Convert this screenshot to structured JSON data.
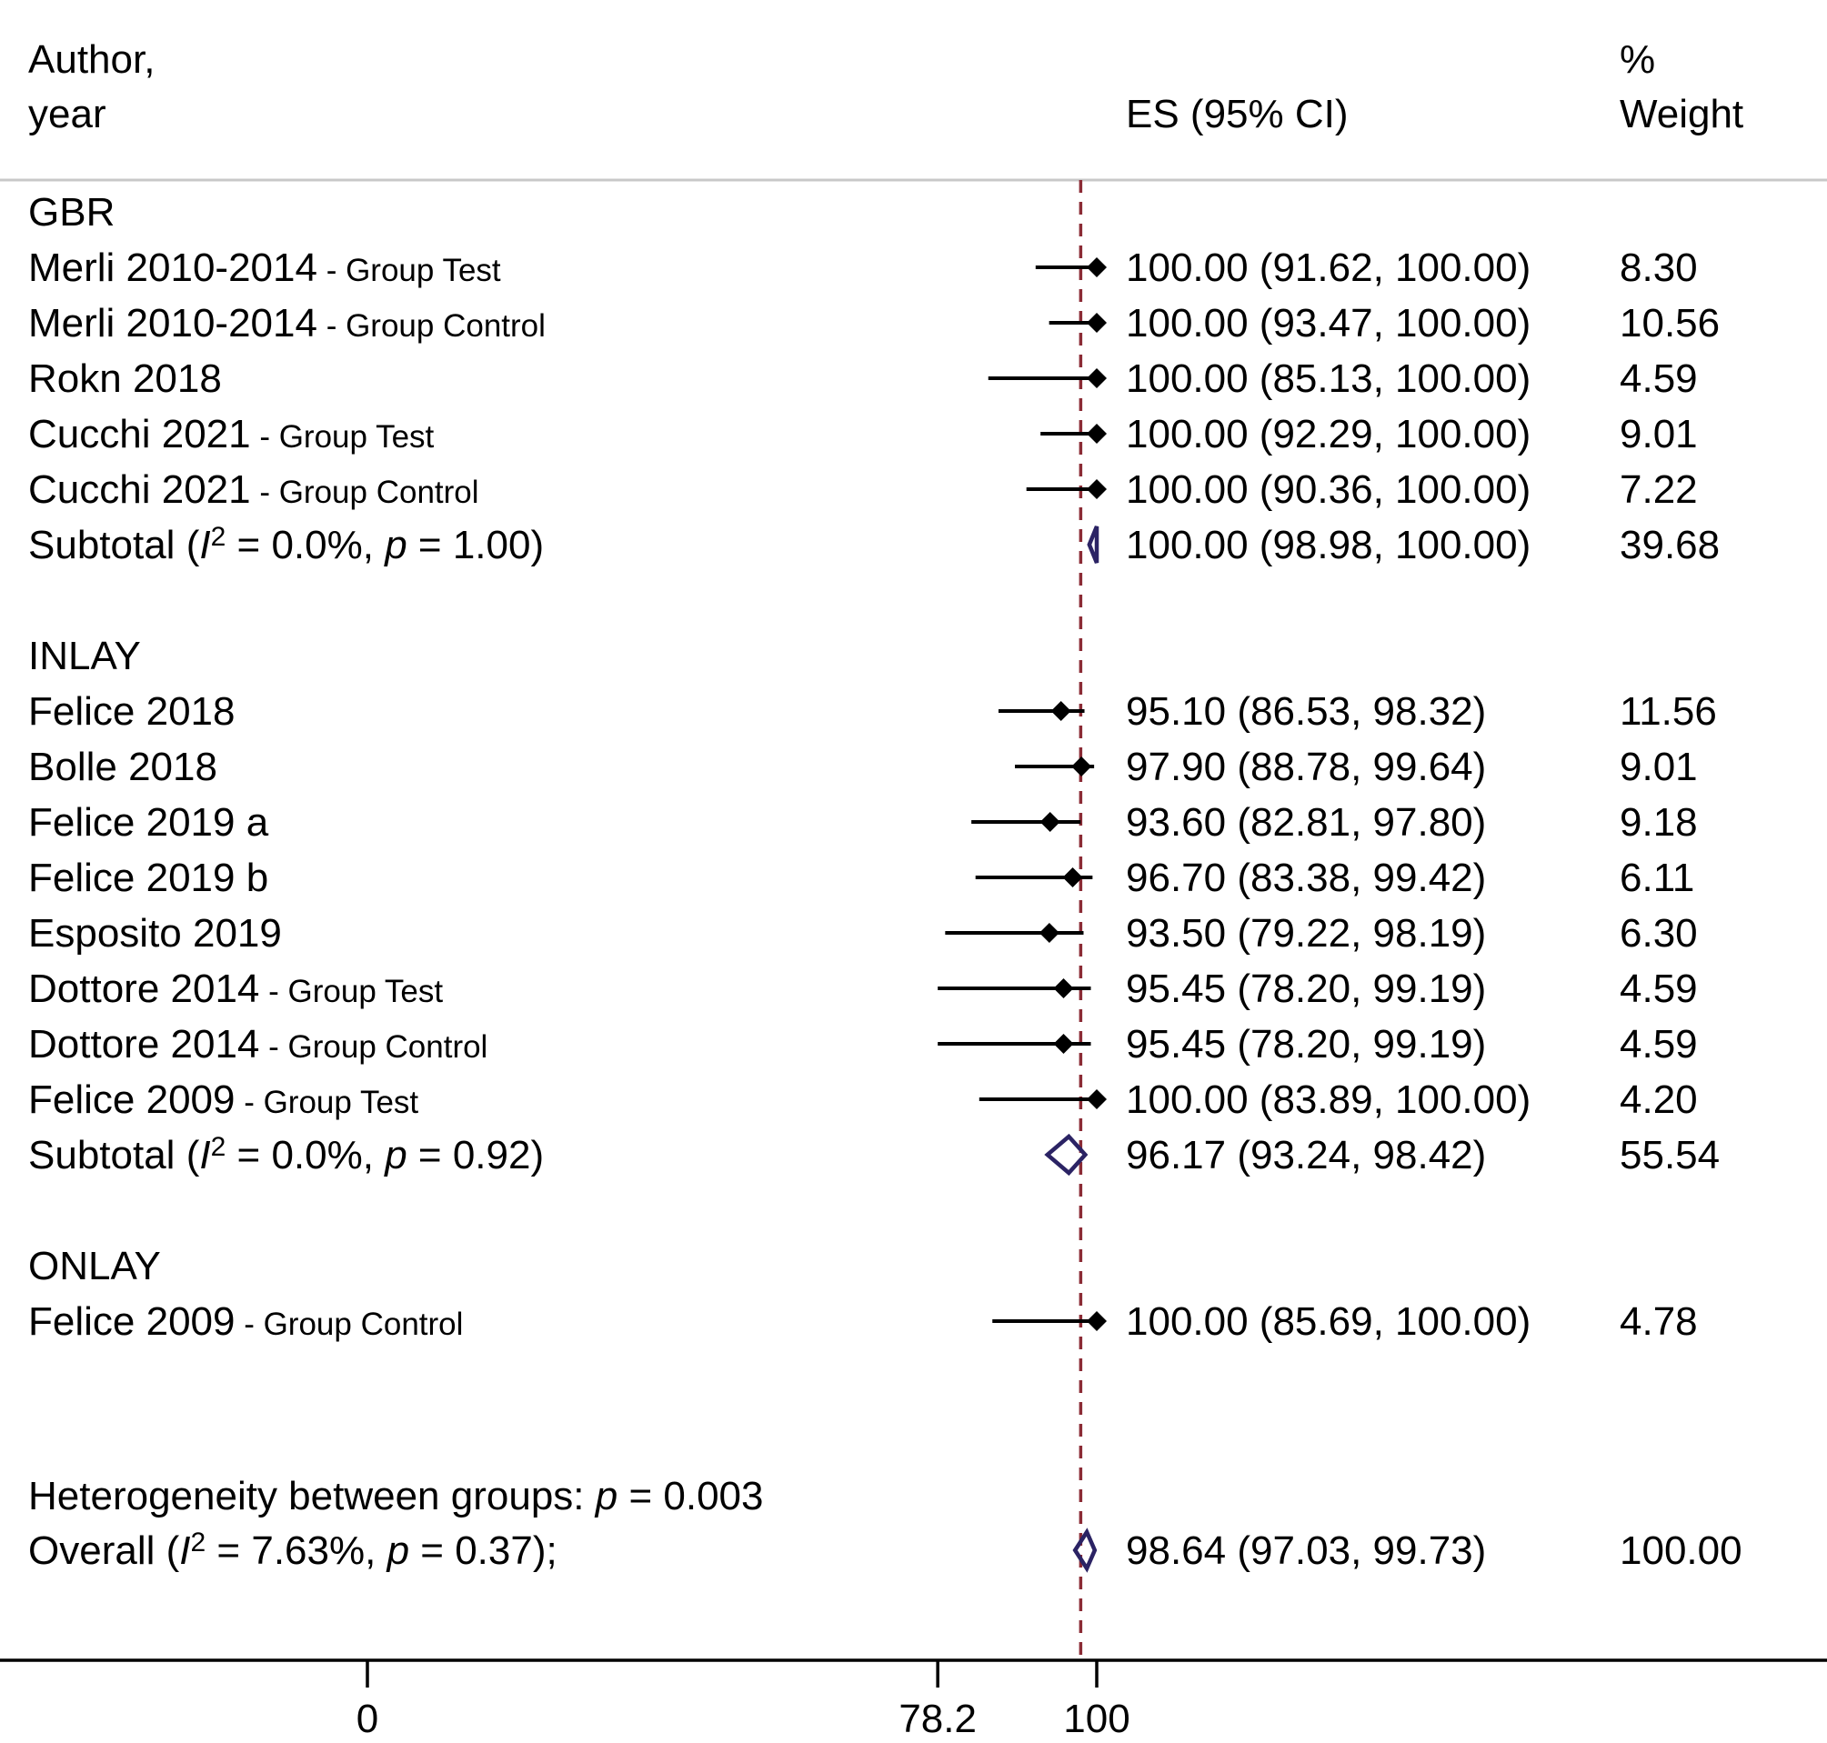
{
  "headers": {
    "author_line1": "Author,",
    "author_line2": "year",
    "es": "ES (95% CI)",
    "weight_line1": "%",
    "weight_line2": "Weight"
  },
  "chart_data": {
    "type": "forest",
    "xticks": [
      0,
      78.2,
      100
    ],
    "xtick_labels": [
      "0",
      "78.2",
      "100"
    ],
    "reference_line": 97.8,
    "colors": {
      "marker": "#000000",
      "diamond": "#2b2364",
      "reference": "#8b2b35",
      "rule": "#c8c8c8"
    },
    "groups": [
      {
        "name": "GBR",
        "studies": [
          {
            "author": "Merli 2010-2014",
            "note": "- Group Test",
            "es": 100.0,
            "lo": 91.62,
            "hi": 100.0,
            "es_text": "100.00 (91.62, 100.00)",
            "weight": "8.30"
          },
          {
            "author": "Merli 2010-2014",
            "note": "- Group Control",
            "es": 100.0,
            "lo": 93.47,
            "hi": 100.0,
            "es_text": "100.00 (93.47, 100.00)",
            "weight": "10.56"
          },
          {
            "author": "Rokn 2018",
            "note": "",
            "es": 100.0,
            "lo": 85.13,
            "hi": 100.0,
            "es_text": "100.00 (85.13, 100.00)",
            "weight": "4.59"
          },
          {
            "author": "Cucchi 2021",
            "note": "- Group Test",
            "es": 100.0,
            "lo": 92.29,
            "hi": 100.0,
            "es_text": "100.00 (92.29, 100.00)",
            "weight": "9.01"
          },
          {
            "author": "Cucchi 2021",
            "note": "- Group Control",
            "es": 100.0,
            "lo": 90.36,
            "hi": 100.0,
            "es_text": "100.00 (90.36, 100.00)",
            "weight": "7.22"
          }
        ],
        "subtotal": {
          "label": "Subtotal",
          "i2": "0.0%",
          "p": "1.00",
          "es": 100.0,
          "lo": 98.98,
          "hi": 100.0,
          "es_text": "100.00 (98.98, 100.00)",
          "weight": "39.68"
        }
      },
      {
        "name": "INLAY",
        "studies": [
          {
            "author": "Felice 2018",
            "note": "",
            "es": 95.1,
            "lo": 86.53,
            "hi": 98.32,
            "es_text": "95.10 (86.53, 98.32)",
            "weight": "11.56"
          },
          {
            "author": "Bolle 2018",
            "note": "",
            "es": 97.9,
            "lo": 88.78,
            "hi": 99.64,
            "es_text": "97.90 (88.78, 99.64)",
            "weight": "9.01"
          },
          {
            "author": "Felice 2019 a",
            "note": "",
            "es": 93.6,
            "lo": 82.81,
            "hi": 97.8,
            "es_text": "93.60 (82.81, 97.80)",
            "weight": "9.18"
          },
          {
            "author": "Felice 2019 b",
            "note": "",
            "es": 96.7,
            "lo": 83.38,
            "hi": 99.42,
            "es_text": "96.70 (83.38, 99.42)",
            "weight": "6.11"
          },
          {
            "author": "Esposito 2019",
            "note": "",
            "es": 93.5,
            "lo": 79.22,
            "hi": 98.19,
            "es_text": "93.50 (79.22, 98.19)",
            "weight": "6.30"
          },
          {
            "author": "Dottore 2014",
            "note": "- Group Test",
            "es": 95.45,
            "lo": 78.2,
            "hi": 99.19,
            "es_text": "95.45 (78.20, 99.19)",
            "weight": "4.59"
          },
          {
            "author": "Dottore 2014",
            "note": "- Group Control",
            "es": 95.45,
            "lo": 78.2,
            "hi": 99.19,
            "es_text": "95.45 (78.20, 99.19)",
            "weight": "4.59"
          },
          {
            "author": "Felice 2009",
            "note": "- Group Test",
            "es": 100.0,
            "lo": 83.89,
            "hi": 100.0,
            "es_text": "100.00 (83.89, 100.00)",
            "weight": "4.20"
          }
        ],
        "subtotal": {
          "label": "Subtotal",
          "i2": "0.0%",
          "p": "0.92",
          "es": 96.17,
          "lo": 93.24,
          "hi": 98.42,
          "es_text": "96.17 (93.24, 98.42)",
          "weight": "55.54"
        }
      },
      {
        "name": "ONLAY",
        "studies": [
          {
            "author": "Felice 2009",
            "note": "- Group Control",
            "es": 100.0,
            "lo": 85.69,
            "hi": 100.0,
            "es_text": "100.00 (85.69, 100.00)",
            "weight": "4.78"
          }
        ]
      }
    ],
    "heterogeneity": {
      "label": "Heterogeneity between groups:",
      "p": "0.003"
    },
    "overall": {
      "label": "Overall",
      "i2": "7.63%",
      "p": "0.37",
      "es": 98.64,
      "lo": 97.03,
      "hi": 99.73,
      "es_text": "98.64 (97.03, 99.73)",
      "weight": "100.00"
    }
  }
}
